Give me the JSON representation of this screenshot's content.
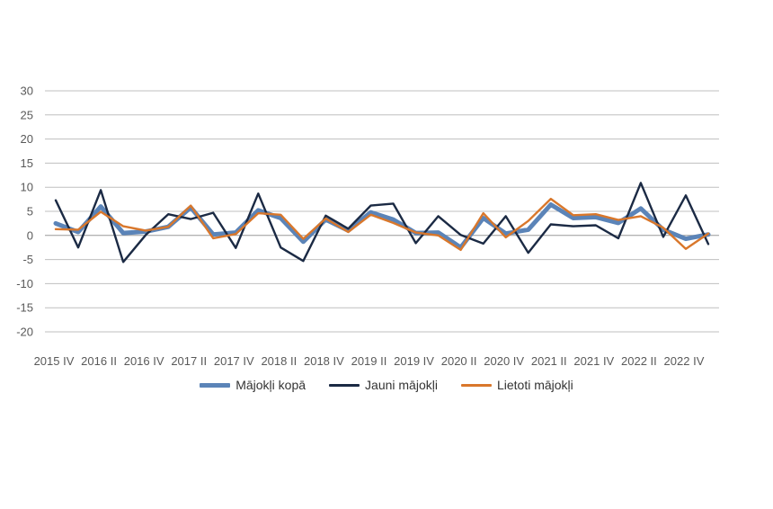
{
  "chart_data": {
    "type": "line",
    "title": "",
    "xlabel": "",
    "ylabel": "",
    "ylim": [
      -20,
      30
    ],
    "yticks": [
      30,
      25,
      20,
      15,
      10,
      5,
      0,
      -5,
      -10,
      -15,
      -20
    ],
    "grid": true,
    "legend_position": "bottom",
    "x_tick_labels": [
      "2015 IV",
      "2016 II",
      "2016 IV",
      "2017 II",
      "2017 IV",
      "2018 II",
      "2018 IV",
      "2019 II",
      "2019 IV",
      "2020 II",
      "2020 IV",
      "2021 II",
      "2021 IV",
      "2022 II",
      "2022 IV"
    ],
    "x": [
      "2015 IV",
      "2016 I",
      "2016 II",
      "2016 III",
      "2016 IV",
      "2017 I",
      "2017 II",
      "2017 III",
      "2017 IV",
      "2018 I",
      "2018 II",
      "2018 III",
      "2018 IV",
      "2019 I",
      "2019 II",
      "2019 III",
      "2019 IV",
      "2020 I",
      "2020 II",
      "2020 III",
      "2020 IV",
      "2021 I",
      "2021 II",
      "2021 III",
      "2021 IV",
      "2022 I",
      "2022 II",
      "2022 III",
      "2022 IV",
      "2023 I"
    ],
    "series": [
      {
        "name": "Mājokļi kopā",
        "color": "#5b84b8",
        "values": [
          2.5,
          0.7,
          6.0,
          0.5,
          0.8,
          1.8,
          5.8,
          0.2,
          0.6,
          5.2,
          3.6,
          -1.3,
          3.3,
          1.0,
          4.8,
          3.3,
          0.5,
          0.6,
          -2.5,
          3.6,
          0.4,
          1.2,
          6.4,
          3.6,
          3.8,
          2.6,
          5.6,
          1.2,
          -0.7,
          0.2
        ]
      },
      {
        "name": "Jauni mājokļi",
        "color": "#1b2a44",
        "values": [
          7.3,
          -2.5,
          9.4,
          -5.5,
          0.1,
          4.4,
          3.4,
          4.7,
          -2.6,
          8.7,
          -2.5,
          -5.3,
          4.1,
          1.4,
          6.2,
          6.6,
          -1.6,
          4.0,
          0.1,
          -1.7,
          4.0,
          -3.6,
          2.3,
          1.9,
          2.1,
          -0.6,
          10.9,
          -0.3,
          8.3,
          -1.8
        ]
      },
      {
        "name": "Lietoti mājokļi",
        "color": "#d9772b",
        "values": [
          1.3,
          1.2,
          4.9,
          1.9,
          1.0,
          1.8,
          6.2,
          -0.6,
          0.3,
          4.6,
          4.3,
          -0.7,
          3.5,
          0.7,
          4.3,
          2.6,
          0.6,
          0.0,
          -3.0,
          4.6,
          -0.4,
          3.0,
          7.6,
          4.2,
          4.4,
          3.2,
          4.0,
          1.6,
          -2.8,
          0.4
        ]
      }
    ]
  }
}
